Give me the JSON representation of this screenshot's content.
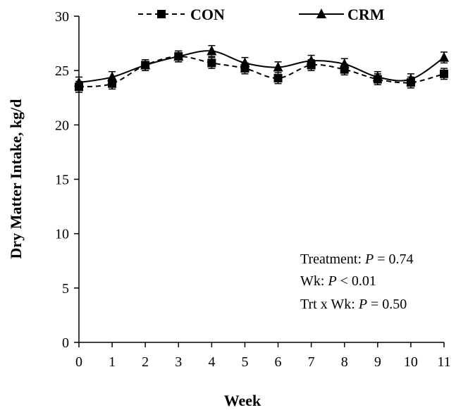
{
  "chart_data": {
    "type": "line",
    "xlabel": "Week",
    "ylabel": "Dry Matter Intake, kg/d",
    "xlim": [
      0,
      11
    ],
    "ylim": [
      0,
      30
    ],
    "x": [
      0,
      1,
      2,
      3,
      4,
      5,
      6,
      7,
      8,
      9,
      10,
      11
    ],
    "x_tick_labels": [
      "0",
      "1",
      "2",
      "3",
      "4",
      "5",
      "6",
      "7",
      "8",
      "9",
      "10",
      "11"
    ],
    "y_tick_labels": [
      "0",
      "5",
      "10",
      "15",
      "20",
      "25",
      "30"
    ],
    "y_ticks": [
      0,
      5,
      10,
      15,
      20,
      25,
      30
    ],
    "grid": false,
    "legend_position": "top",
    "series": [
      {
        "name": "CON",
        "line_style": "dashed",
        "marker": "square",
        "color": "#000000",
        "values": [
          23.5,
          23.8,
          25.5,
          26.3,
          25.7,
          25.2,
          24.3,
          25.5,
          25.1,
          24.2,
          23.9,
          24.7
        ],
        "error": [
          0.5,
          0.5,
          0.5,
          0.5,
          0.5,
          0.5,
          0.5,
          0.5,
          0.5,
          0.5,
          0.5,
          0.5
        ]
      },
      {
        "name": "CRM",
        "line_style": "solid",
        "marker": "triangle",
        "color": "#000000",
        "values": [
          23.9,
          24.4,
          25.5,
          26.3,
          26.8,
          25.7,
          25.3,
          25.9,
          25.6,
          24.4,
          24.2,
          26.2
        ],
        "error": [
          0.5,
          0.5,
          0.5,
          0.5,
          0.5,
          0.5,
          0.5,
          0.5,
          0.5,
          0.5,
          0.5,
          0.5
        ]
      }
    ],
    "annotations": {
      "treatment_label": "Treatment: ",
      "treatment_p": "P",
      "treatment_rest": " = 0.74",
      "week_label": "Wk: ",
      "week_p": "P",
      "week_rest": " < 0.01",
      "interaction_label": "Trt x Wk: ",
      "interaction_p": "P",
      "interaction_rest": " = 0.50"
    }
  }
}
